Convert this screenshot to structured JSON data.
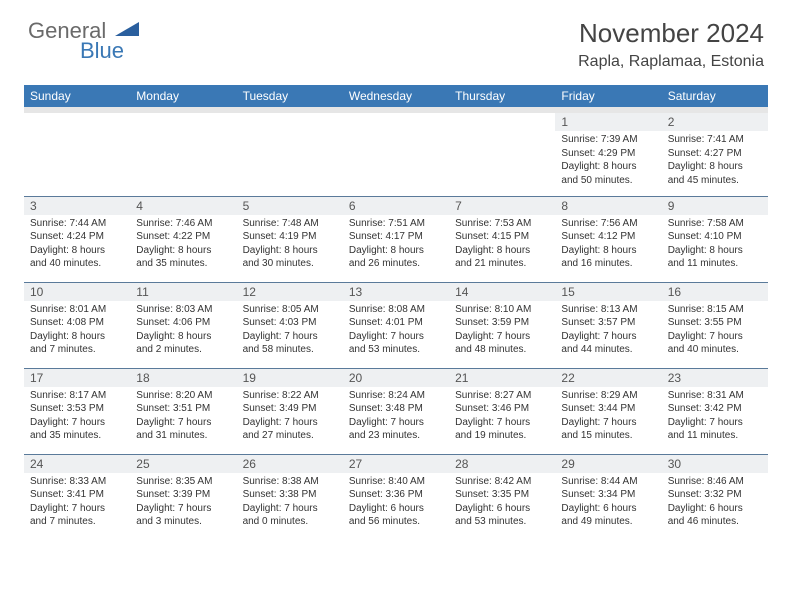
{
  "logo": {
    "general": "General",
    "blue": "Blue"
  },
  "title": "November 2024",
  "location": "Rapla, Raplamaa, Estonia",
  "colors": {
    "header_bg": "#3a78b5",
    "header_text": "#ffffff",
    "daynum_bg": "#eef0f2",
    "row_border": "#5a7a9a",
    "subheader_band": "#e6e6e6",
    "text": "#333333",
    "logo_gray": "#6a6a6a",
    "logo_blue": "#3a78b5"
  },
  "columns": [
    "Sunday",
    "Monday",
    "Tuesday",
    "Wednesday",
    "Thursday",
    "Friday",
    "Saturday"
  ],
  "weeks": [
    [
      null,
      null,
      null,
      null,
      null,
      {
        "n": "1",
        "sr": "7:39 AM",
        "ss": "4:29 PM",
        "dl": "8 hours and 50 minutes."
      },
      {
        "n": "2",
        "sr": "7:41 AM",
        "ss": "4:27 PM",
        "dl": "8 hours and 45 minutes."
      }
    ],
    [
      {
        "n": "3",
        "sr": "7:44 AM",
        "ss": "4:24 PM",
        "dl": "8 hours and 40 minutes."
      },
      {
        "n": "4",
        "sr": "7:46 AM",
        "ss": "4:22 PM",
        "dl": "8 hours and 35 minutes."
      },
      {
        "n": "5",
        "sr": "7:48 AM",
        "ss": "4:19 PM",
        "dl": "8 hours and 30 minutes."
      },
      {
        "n": "6",
        "sr": "7:51 AM",
        "ss": "4:17 PM",
        "dl": "8 hours and 26 minutes."
      },
      {
        "n": "7",
        "sr": "7:53 AM",
        "ss": "4:15 PM",
        "dl": "8 hours and 21 minutes."
      },
      {
        "n": "8",
        "sr": "7:56 AM",
        "ss": "4:12 PM",
        "dl": "8 hours and 16 minutes."
      },
      {
        "n": "9",
        "sr": "7:58 AM",
        "ss": "4:10 PM",
        "dl": "8 hours and 11 minutes."
      }
    ],
    [
      {
        "n": "10",
        "sr": "8:01 AM",
        "ss": "4:08 PM",
        "dl": "8 hours and 7 minutes."
      },
      {
        "n": "11",
        "sr": "8:03 AM",
        "ss": "4:06 PM",
        "dl": "8 hours and 2 minutes."
      },
      {
        "n": "12",
        "sr": "8:05 AM",
        "ss": "4:03 PM",
        "dl": "7 hours and 58 minutes."
      },
      {
        "n": "13",
        "sr": "8:08 AM",
        "ss": "4:01 PM",
        "dl": "7 hours and 53 minutes."
      },
      {
        "n": "14",
        "sr": "8:10 AM",
        "ss": "3:59 PM",
        "dl": "7 hours and 48 minutes."
      },
      {
        "n": "15",
        "sr": "8:13 AM",
        "ss": "3:57 PM",
        "dl": "7 hours and 44 minutes."
      },
      {
        "n": "16",
        "sr": "8:15 AM",
        "ss": "3:55 PM",
        "dl": "7 hours and 40 minutes."
      }
    ],
    [
      {
        "n": "17",
        "sr": "8:17 AM",
        "ss": "3:53 PM",
        "dl": "7 hours and 35 minutes."
      },
      {
        "n": "18",
        "sr": "8:20 AM",
        "ss": "3:51 PM",
        "dl": "7 hours and 31 minutes."
      },
      {
        "n": "19",
        "sr": "8:22 AM",
        "ss": "3:49 PM",
        "dl": "7 hours and 27 minutes."
      },
      {
        "n": "20",
        "sr": "8:24 AM",
        "ss": "3:48 PM",
        "dl": "7 hours and 23 minutes."
      },
      {
        "n": "21",
        "sr": "8:27 AM",
        "ss": "3:46 PM",
        "dl": "7 hours and 19 minutes."
      },
      {
        "n": "22",
        "sr": "8:29 AM",
        "ss": "3:44 PM",
        "dl": "7 hours and 15 minutes."
      },
      {
        "n": "23",
        "sr": "8:31 AM",
        "ss": "3:42 PM",
        "dl": "7 hours and 11 minutes."
      }
    ],
    [
      {
        "n": "24",
        "sr": "8:33 AM",
        "ss": "3:41 PM",
        "dl": "7 hours and 7 minutes."
      },
      {
        "n": "25",
        "sr": "8:35 AM",
        "ss": "3:39 PM",
        "dl": "7 hours and 3 minutes."
      },
      {
        "n": "26",
        "sr": "8:38 AM",
        "ss": "3:38 PM",
        "dl": "7 hours and 0 minutes."
      },
      {
        "n": "27",
        "sr": "8:40 AM",
        "ss": "3:36 PM",
        "dl": "6 hours and 56 minutes."
      },
      {
        "n": "28",
        "sr": "8:42 AM",
        "ss": "3:35 PM",
        "dl": "6 hours and 53 minutes."
      },
      {
        "n": "29",
        "sr": "8:44 AM",
        "ss": "3:34 PM",
        "dl": "6 hours and 49 minutes."
      },
      {
        "n": "30",
        "sr": "8:46 AM",
        "ss": "3:32 PM",
        "dl": "6 hours and 46 minutes."
      }
    ]
  ],
  "labels": {
    "sunrise": "Sunrise:",
    "sunset": "Sunset:",
    "daylight": "Daylight:"
  }
}
